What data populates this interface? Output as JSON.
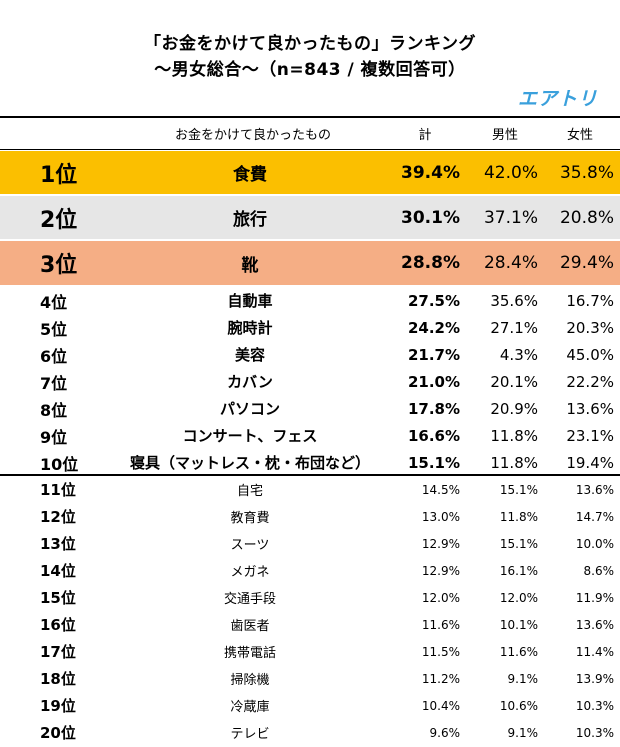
{
  "chart_data": {
    "type": "table",
    "title": "「お金をかけて良かったもの」ランキング",
    "subtitle": "〜男女総合〜（n=843 / 複数回答可）",
    "brand": "エアトリ",
    "columns": [
      "お金をかけて良かったもの",
      "計",
      "男性",
      "女性"
    ],
    "rows": [
      {
        "rank": "1位",
        "item": "食費",
        "total": "39.4%",
        "male": "42.0%",
        "female": "35.8%"
      },
      {
        "rank": "2位",
        "item": "旅行",
        "total": "30.1%",
        "male": "37.1%",
        "female": "20.8%"
      },
      {
        "rank": "3位",
        "item": "靴",
        "total": "28.8%",
        "male": "28.4%",
        "female": "29.4%"
      },
      {
        "rank": "4位",
        "item": "自動車",
        "total": "27.5%",
        "male": "35.6%",
        "female": "16.7%"
      },
      {
        "rank": "5位",
        "item": "腕時計",
        "total": "24.2%",
        "male": "27.1%",
        "female": "20.3%"
      },
      {
        "rank": "6位",
        "item": "美容",
        "total": "21.7%",
        "male": "4.3%",
        "female": "45.0%"
      },
      {
        "rank": "7位",
        "item": "カバン",
        "total": "21.0%",
        "male": "20.1%",
        "female": "22.2%"
      },
      {
        "rank": "8位",
        "item": "パソコン",
        "total": "17.8%",
        "male": "20.9%",
        "female": "13.6%"
      },
      {
        "rank": "9位",
        "item": "コンサート、フェス",
        "total": "16.6%",
        "male": "11.8%",
        "female": "23.1%"
      },
      {
        "rank": "10位",
        "item": "寝具（マットレス・枕・布団など）",
        "total": "15.1%",
        "male": "11.8%",
        "female": "19.4%"
      },
      {
        "rank": "11位",
        "item": "自宅",
        "total": "14.5%",
        "male": "15.1%",
        "female": "13.6%"
      },
      {
        "rank": "12位",
        "item": "教育費",
        "total": "13.0%",
        "male": "11.8%",
        "female": "14.7%"
      },
      {
        "rank": "13位",
        "item": "スーツ",
        "total": "12.9%",
        "male": "15.1%",
        "female": "10.0%"
      },
      {
        "rank": "14位",
        "item": "メガネ",
        "total": "12.9%",
        "male": "16.1%",
        "female": "8.6%"
      },
      {
        "rank": "15位",
        "item": "交通手段",
        "total": "12.0%",
        "male": "12.0%",
        "female": "11.9%"
      },
      {
        "rank": "16位",
        "item": "歯医者",
        "total": "11.6%",
        "male": "10.1%",
        "female": "13.6%"
      },
      {
        "rank": "17位",
        "item": "携帯電話",
        "total": "11.5%",
        "male": "11.6%",
        "female": "11.4%"
      },
      {
        "rank": "18位",
        "item": "掃除機",
        "total": "11.2%",
        "male": "9.1%",
        "female": "13.9%"
      },
      {
        "rank": "19位",
        "item": "冷蔵庫",
        "total": "10.4%",
        "male": "10.6%",
        "female": "10.3%"
      },
      {
        "rank": "20位",
        "item": "テレビ",
        "total": "9.6%",
        "male": "9.1%",
        "female": "10.3%"
      }
    ],
    "highlight_colors": [
      "#fbbf00",
      "#e6e6e6",
      "#f5ae85"
    ]
  }
}
